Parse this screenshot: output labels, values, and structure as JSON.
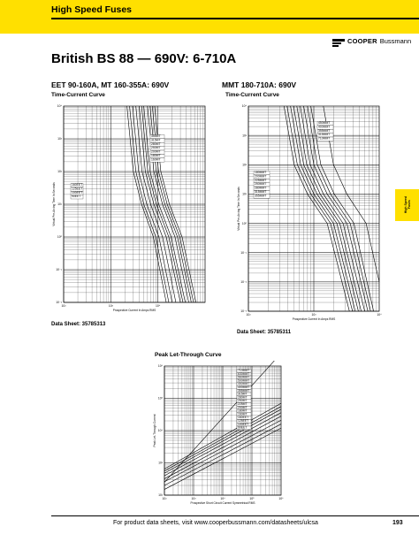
{
  "header": {
    "title": "High Speed Fuses",
    "logo_brand": "COOPER",
    "logo_sub": "Bussmann"
  },
  "side_tab": {
    "line1": "High Speed",
    "line2": "Fuses"
  },
  "page_title": "British BS 88 — 690V: 6-710A",
  "left_section": {
    "heading": "EET 90-160A, MT 160-355A: 690V",
    "chart_title": "Time-Current Curve",
    "data_sheet": "Data Sheet: 35785313"
  },
  "right_section": {
    "heading": "MMT 180-710A: 690V",
    "chart_title": "Time-Current Curve",
    "data_sheet": "Data Sheet: 35785311"
  },
  "bottom_section": {
    "chart_title": "Peak Let-Through Curve"
  },
  "footer": {
    "text": "For product data sheets, visit www.cooperbussmann.com/datasheets/ulcsa",
    "page_number": "193"
  },
  "colors": {
    "accent_yellow": "#ffe000",
    "ink": "#000000"
  },
  "chart_data": [
    {
      "type": "line",
      "title": "Time-Current Curve",
      "xlabel": "Prospective Current In Amps RMS",
      "ylabel": "Virtual Pre-Arcing Time In Seconds",
      "x_scale": "log",
      "y_scale": "log",
      "xlim": [
        10,
        10000
      ],
      "ylim": [
        0.01,
        10000
      ],
      "x_ticks": [
        "10²",
        "10³",
        "10⁴"
      ],
      "y_ticks": [
        "10⁴",
        "10³",
        "10²",
        "10¹",
        "10⁰",
        "10⁻¹",
        "10⁻²"
      ],
      "grid": true,
      "legend_upper": [
        "355MT",
        "315MT",
        "280MT",
        "250MT",
        "200MT",
        "180MT",
        "160MT"
      ],
      "legend_lower": [
        "160EET",
        "125EET",
        "100EET",
        "90EET"
      ],
      "series": [
        {
          "name": "90EET",
          "x": [
            220,
            300,
            450,
            800,
            1500
          ],
          "y": [
            10000,
            100,
            10,
            1,
            0.01
          ]
        },
        {
          "name": "100EET",
          "x": [
            250,
            340,
            500,
            900,
            1700
          ],
          "y": [
            10000,
            100,
            10,
            1,
            0.01
          ]
        },
        {
          "name": "125EET",
          "x": [
            290,
            390,
            580,
            1050,
            2000
          ],
          "y": [
            10000,
            100,
            10,
            1,
            0.01
          ]
        },
        {
          "name": "160EET",
          "x": [
            340,
            460,
            700,
            1250,
            2400
          ],
          "y": [
            10000,
            100,
            10,
            1,
            0.01
          ]
        },
        {
          "name": "160MT",
          "x": [
            400,
            540,
            820,
            1500,
            3000
          ],
          "y": [
            10000,
            100,
            10,
            1,
            0.01
          ]
        },
        {
          "name": "180MT",
          "x": [
            450,
            610,
            930,
            1700,
            3400
          ],
          "y": [
            10000,
            100,
            10,
            1,
            0.01
          ]
        },
        {
          "name": "200MT",
          "x": [
            500,
            680,
            1040,
            1900,
            3800
          ],
          "y": [
            10000,
            100,
            10,
            1,
            0.01
          ]
        },
        {
          "name": "250MT",
          "x": [
            600,
            820,
            1250,
            2300,
            4500
          ],
          "y": [
            10000,
            100,
            10,
            1,
            0.01
          ]
        },
        {
          "name": "280MT",
          "x": [
            680,
            920,
            1400,
            2600,
            5100
          ],
          "y": [
            10000,
            100,
            10,
            1,
            0.01
          ]
        },
        {
          "name": "315MT",
          "x": [
            760,
            1030,
            1570,
            2900,
            5700
          ],
          "y": [
            10000,
            100,
            10,
            1,
            0.01
          ]
        },
        {
          "name": "355MT",
          "x": [
            850,
            1150,
            1750,
            3250,
            6400
          ],
          "y": [
            10000,
            100,
            10,
            1,
            0.01
          ]
        }
      ]
    },
    {
      "type": "line",
      "title": "Time-Current Curve",
      "xlabel": "Prospective Current In Amps RMS",
      "ylabel": "Virtual Pre-Arcing Time In Seconds",
      "x_scale": "log",
      "y_scale": "log",
      "xlim": [
        100,
        10000
      ],
      "ylim": [
        0.001,
        10000
      ],
      "x_ticks": [
        "10²",
        "10³",
        "10⁴"
      ],
      "y_ticks": [
        "10⁴",
        "10³",
        "10²",
        "10¹",
        "10⁰",
        "10⁻¹",
        "10⁻²",
        "10⁻³"
      ],
      "grid": true,
      "legend_upper": [
        "450MMT",
        "400MMT",
        "355MMT",
        "315MMT",
        "710MMT"
      ],
      "legend_lower": [
        "180MMT",
        "200MMT",
        "225MMT",
        "250MMT",
        "280MMT",
        "315MMT",
        "355MMT"
      ],
      "series": [
        {
          "name": "180MMT",
          "x": [
            350,
            500,
            800,
            1600,
            3500
          ],
          "y": [
            10000,
            100,
            10,
            1,
            0.001
          ]
        },
        {
          "name": "200MMT",
          "x": [
            390,
            560,
            900,
            1800,
            3900
          ],
          "y": [
            10000,
            100,
            10,
            1,
            0.001
          ]
        },
        {
          "name": "225MMT",
          "x": [
            440,
            630,
            1000,
            2000,
            4300
          ],
          "y": [
            10000,
            100,
            10,
            1,
            0.001
          ]
        },
        {
          "name": "250MMT",
          "x": [
            490,
            700,
            1120,
            2250,
            4800
          ],
          "y": [
            10000,
            100,
            10,
            1,
            0.001
          ]
        },
        {
          "name": "280MMT",
          "x": [
            550,
            780,
            1250,
            2500,
            5300
          ],
          "y": [
            10000,
            100,
            10,
            1,
            0.001
          ]
        },
        {
          "name": "315MMT",
          "x": [
            620,
            880,
            1400,
            2800,
            6000
          ],
          "y": [
            10000,
            100,
            10,
            1,
            0.001
          ]
        },
        {
          "name": "355MMT",
          "x": [
            700,
            1000,
            1600,
            3200,
            6700
          ],
          "y": [
            10000,
            100,
            10,
            1,
            0.001
          ]
        },
        {
          "name": "400MMT",
          "x": [
            800,
            1130,
            1800,
            3600,
            7400
          ],
          "y": [
            10000,
            100,
            10,
            1,
            0.001
          ]
        },
        {
          "name": "450MMT",
          "x": [
            900,
            1280,
            2050,
            4100,
            8200
          ],
          "y": [
            10000,
            100,
            10,
            1,
            0.001
          ]
        },
        {
          "name": "710MMT",
          "x": [
            1400,
            2000,
            3200,
            6300,
            10000
          ],
          "y": [
            10000,
            100,
            10,
            1,
            0.01
          ]
        }
      ]
    },
    {
      "type": "line",
      "title": "Peak Let-Through Curve",
      "xlabel": "Prospective Short Circuit Current Symmetrical RMS",
      "ylabel": "Peak Let-Through Current",
      "x_scale": "log",
      "y_scale": "log",
      "xlim": [
        100,
        1000000
      ],
      "ylim": [
        100,
        1000000
      ],
      "x_ticks": [
        "10²",
        "10³",
        "10⁴",
        "10⁵",
        "10⁶"
      ],
      "y_ticks": [
        "10⁶",
        "10⁵",
        "10⁴",
        "10³",
        "10²"
      ],
      "grid": true,
      "legend": [
        "710MMT",
        "630MMT",
        "560MMT",
        "500MMT",
        "450MMT",
        "400MMT",
        "355MMT",
        "315MT",
        "280MT",
        "250MT",
        "225MT",
        "200MT",
        "180MT",
        "160MT",
        "160EET",
        "125EET",
        "100EET",
        "90EET"
      ],
      "series": [
        {
          "name": "90EET",
          "x": [
            100,
            1000000
          ],
          "y": [
            150,
            12000
          ]
        },
        {
          "name": "160EET",
          "x": [
            100,
            1000000
          ],
          "y": [
            200,
            16000
          ]
        },
        {
          "name": "200MT",
          "x": [
            100,
            1000000
          ],
          "y": [
            260,
            21000
          ]
        },
        {
          "name": "280MT",
          "x": [
            100,
            1000000
          ],
          "y": [
            320,
            28000
          ]
        },
        {
          "name": "355MMT",
          "x": [
            100,
            1000000
          ],
          "y": [
            400,
            36000
          ]
        },
        {
          "name": "450MMT",
          "x": [
            100,
            1000000
          ],
          "y": [
            480,
            46000
          ]
        },
        {
          "name": "560MMT",
          "x": [
            100,
            1000000
          ],
          "y": [
            560,
            56000
          ]
        },
        {
          "name": "710MMT",
          "x": [
            100,
            1000000
          ],
          "y": [
            650,
            70000
          ]
        }
      ],
      "max_peak_line": {
        "x": [
          100,
          1000000
        ],
        "y": [
          250,
          2500000
        ]
      }
    }
  ]
}
